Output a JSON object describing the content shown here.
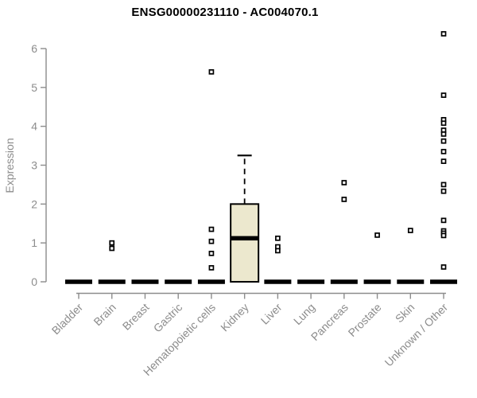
{
  "header": {
    "title": "ENSG00000231110 - AC004070.1"
  },
  "chart_data": {
    "type": "boxplot",
    "title": "ENSG00000231110 - AC004070.1",
    "xlabel": "",
    "ylabel": "Expression",
    "ylim": [
      0,
      6.5
    ],
    "yticks": [
      0,
      1,
      2,
      3,
      4,
      5,
      6
    ],
    "grid": false,
    "legend": null,
    "categories": [
      "Bladder",
      "Brain",
      "Breast",
      "Gastric",
      "Hematopoietic cells",
      "Kidney",
      "Liver",
      "Lung",
      "Pancreas",
      "Prostate",
      "Skin",
      "Unknown / Other"
    ],
    "boxes": [
      {
        "category": "Bladder",
        "q1": 0,
        "median": 0,
        "q3": 0,
        "whisker_low": 0,
        "whisker_high": 0,
        "outliers": []
      },
      {
        "category": "Brain",
        "q1": 0,
        "median": 0,
        "q3": 0,
        "whisker_low": 0,
        "whisker_high": 0,
        "outliers": [
          1.0,
          0.86
        ]
      },
      {
        "category": "Breast",
        "q1": 0,
        "median": 0,
        "q3": 0,
        "whisker_low": 0,
        "whisker_high": 0,
        "outliers": []
      },
      {
        "category": "Gastric",
        "q1": 0,
        "median": 0,
        "q3": 0,
        "whisker_low": 0,
        "whisker_high": 0,
        "outliers": []
      },
      {
        "category": "Hematopoietic cells",
        "q1": 0,
        "median": 0,
        "q3": 0,
        "whisker_low": 0,
        "whisker_high": 0,
        "outliers": [
          5.4,
          1.35,
          1.04,
          0.73,
          0.36
        ]
      },
      {
        "category": "Kidney",
        "q1": 0,
        "median": 1.12,
        "q3": 2.0,
        "whisker_low": 0,
        "whisker_high": 3.25,
        "outliers": []
      },
      {
        "category": "Liver",
        "q1": 0,
        "median": 0,
        "q3": 0,
        "whisker_low": 0,
        "whisker_high": 0,
        "outliers": [
          1.12,
          0.9,
          0.8
        ]
      },
      {
        "category": "Lung",
        "q1": 0,
        "median": 0,
        "q3": 0,
        "whisker_low": 0,
        "whisker_high": 0,
        "outliers": []
      },
      {
        "category": "Pancreas",
        "q1": 0,
        "median": 0,
        "q3": 0,
        "whisker_low": 0,
        "whisker_high": 0,
        "outliers": [
          2.55,
          2.12
        ]
      },
      {
        "category": "Prostate",
        "q1": 0,
        "median": 0,
        "q3": 0,
        "whisker_low": 0,
        "whisker_high": 0,
        "outliers": [
          1.2
        ]
      },
      {
        "category": "Skin",
        "q1": 0,
        "median": 0,
        "q3": 0,
        "whisker_low": 0,
        "whisker_high": 0,
        "outliers": [
          1.32
        ]
      },
      {
        "category": "Unknown / Other",
        "q1": 0,
        "median": 0,
        "q3": 0,
        "whisker_low": 0,
        "whisker_high": 0,
        "outliers": [
          6.38,
          4.8,
          4.17,
          4.08,
          3.9,
          3.8,
          3.62,
          3.35,
          3.1,
          2.5,
          2.33,
          1.58,
          1.31,
          1.25,
          1.19,
          0.38
        ]
      }
    ],
    "colors": {
      "background": "#ffffff",
      "box_fill": "#ECE8CE",
      "box_border": "#000000",
      "median": "#000000",
      "whisker": "#000000",
      "outlier_fill": "#ffffff",
      "outlier_border": "#000000",
      "axis": "#8c8c8c",
      "tick_label": "#8c8c8c",
      "title": "#000000"
    }
  }
}
